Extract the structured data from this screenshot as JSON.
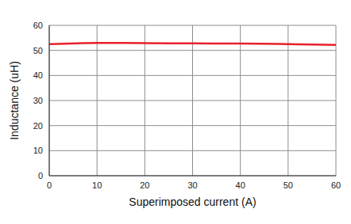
{
  "chart_data": {
    "type": "line",
    "x_label": "Superimposed current (A)",
    "y_label": "Inductance (uH)",
    "x": [
      0,
      10,
      20,
      30,
      40,
      50,
      60
    ],
    "values": [
      52.5,
      53.0,
      52.9,
      52.8,
      52.7,
      52.5,
      52.2
    ],
    "color": "#e8202a",
    "xlim": [
      0,
      60
    ],
    "xticks": [
      0,
      10,
      20,
      30,
      40,
      50,
      60
    ],
    "ylim": [
      0,
      60
    ],
    "yticks": [
      0,
      10,
      20,
      30,
      40,
      50,
      60
    ],
    "grid": true
  }
}
